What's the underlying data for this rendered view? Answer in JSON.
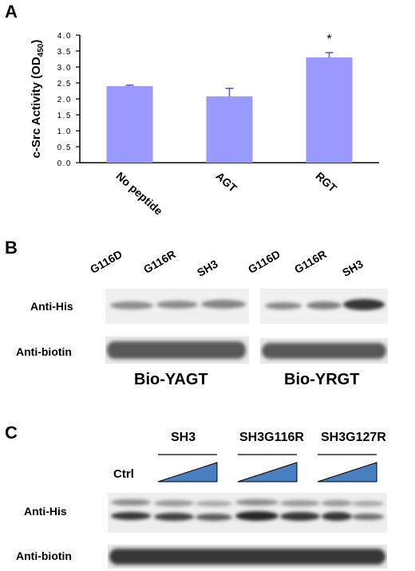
{
  "panel_a": {
    "letter": "A",
    "chart_data": {
      "type": "bar",
      "categories": [
        "No peptide",
        "AGT",
        "RGT"
      ],
      "values": [
        2.4,
        2.08,
        3.3
      ],
      "errors": [
        0.03,
        0.25,
        0.15
      ],
      "annotations": [
        "",
        "",
        "*"
      ],
      "title": "",
      "xlabel": "",
      "ylabel": "c-Src Activity (OD",
      "ylabel_sub": "450",
      "ylabel_close": ")",
      "ylim": [
        0,
        4.0
      ],
      "yticks": [
        "0.0",
        "0.5",
        "1.0",
        "1.5",
        "2.0",
        "2.5",
        "3.0",
        "3.5",
        "4.0"
      ],
      "bar_color": "#9999ff",
      "grid": false
    }
  },
  "panel_b": {
    "letter": "B",
    "lanes": [
      "G116D",
      "G116R",
      "SH3",
      "G116D",
      "G116R",
      "SH3"
    ],
    "rows": [
      "Anti-His",
      "Anti-biotin"
    ],
    "groups": [
      "Bio-YAGT",
      "Bio-YRGT"
    ]
  },
  "panel_c": {
    "letter": "C",
    "groups": [
      "SH3",
      "SH3G116R",
      "SH3G127R"
    ],
    "ctrl": "Ctrl",
    "rows": [
      "Anti-His",
      "Anti-biotin"
    ],
    "wedge_color": "#4a7fc1"
  }
}
